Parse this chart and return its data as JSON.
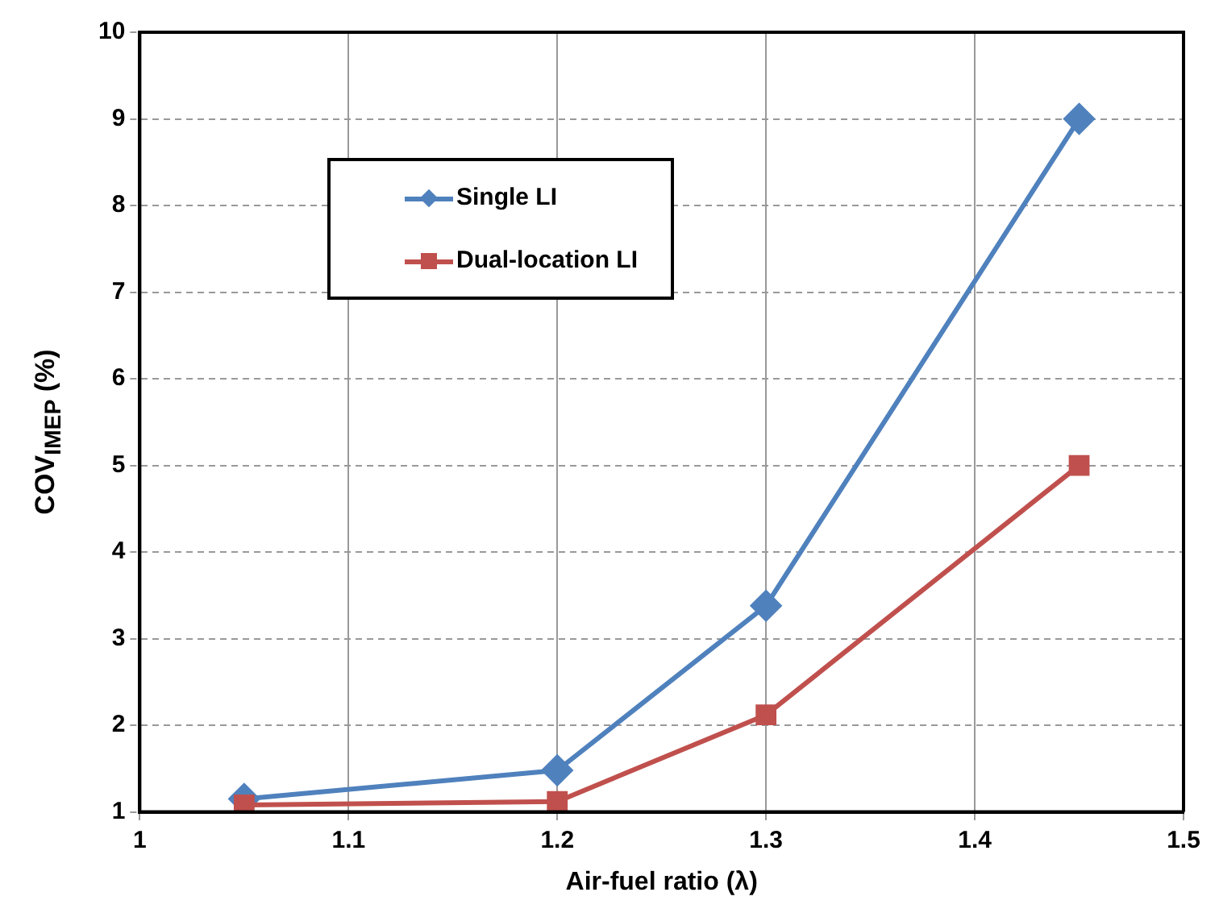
{
  "chart_data": {
    "type": "line",
    "xlabel": "Air-fuel ratio (λ)",
    "ylabel": "COV$_{IMEP}$ (%)",
    "x": [
      1.05,
      1.2,
      1.3,
      1.45
    ],
    "series": [
      {
        "name": "Single LI",
        "color": "#4f81bd",
        "marker": "diamond",
        "values": [
          1.15,
          1.48,
          3.38,
          9.0
        ]
      },
      {
        "name": "Dual-location LI",
        "color": "#c0504d",
        "marker": "square",
        "values": [
          1.08,
          1.12,
          2.12,
          5.0
        ]
      }
    ],
    "xlim": [
      1,
      1.5
    ],
    "xticks": [
      1,
      1.1,
      1.2,
      1.3,
      1.4,
      1.5
    ],
    "ylim": [
      1,
      10
    ],
    "yticks": [
      1,
      2,
      3,
      4,
      5,
      6,
      7,
      8,
      9,
      10
    ],
    "grid": true,
    "legend": "top left",
    "line_style": "solid"
  }
}
